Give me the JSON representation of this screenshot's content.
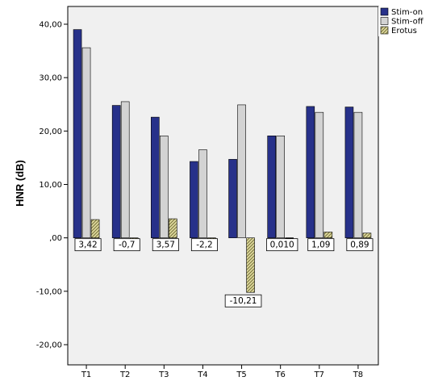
{
  "chart_data": {
    "type": "bar",
    "ylabel": "HNR (dB)",
    "xlabel": "",
    "categories": [
      "T1",
      "T2",
      "T3",
      "T4",
      "T5",
      "T6",
      "T7",
      "T8"
    ],
    "ylim": [
      -20,
      40
    ],
    "y_ticks": [
      -20,
      -10,
      0,
      10,
      20,
      30,
      40
    ],
    "y_tick_labels": [
      "-20,00",
      "-10,00",
      ",00",
      "10,00",
      "20,00",
      "30,00",
      "40,00"
    ],
    "grid": false,
    "legend_position": "top-right",
    "series": [
      {
        "name": "Stim-on",
        "color": "#27318a",
        "pattern": "solid",
        "values": [
          39.0,
          24.8,
          22.6,
          14.3,
          14.7,
          19.1,
          24.6,
          24.5
        ]
      },
      {
        "name": "Stim-off",
        "color": "#d3d3d3",
        "pattern": "solid",
        "values": [
          35.6,
          25.5,
          19.1,
          16.5,
          24.9,
          19.1,
          23.5,
          23.5
        ]
      },
      {
        "name": "Erotus",
        "color": "#ddd89c",
        "pattern": "hatch",
        "values": [
          3.42,
          -0.7,
          3.57,
          -2.2,
          -10.21,
          0.01,
          1.09,
          0.89
        ]
      }
    ],
    "data_labels": [
      "3,42",
      "-0,7",
      "3,57",
      "-2,2",
      "-10,21",
      "0,010",
      "1,09",
      "0,89"
    ]
  }
}
